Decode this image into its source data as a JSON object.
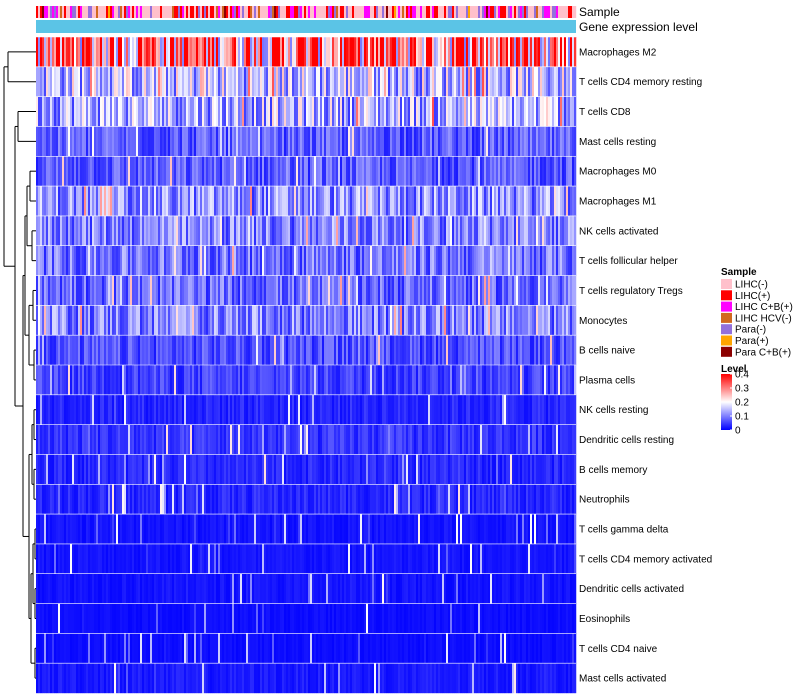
{
  "chart_data": {
    "type": "heatmap",
    "annotation_labels": {
      "sample": "Sample",
      "expression": "Gene expression level"
    },
    "expression_bar_color": "#5bc4e6",
    "rows": [
      "Macrophages M2",
      "T cells CD4 memory resting",
      "T cells CD8",
      "Mast cells resting",
      "Macrophages M0",
      "Macrophages M1",
      "NK cells activated",
      "T cells follicular helper",
      "T cells regulatory  Tregs",
      "Monocytes",
      "B cells naive",
      "Plasma cells",
      "NK cells resting",
      "Dendritic cells resting",
      "B cells memory",
      "Neutrophils",
      "T cells gamma delta",
      "T cells CD4 memory activated",
      "Dendritic cells activated",
      "Eosinophils",
      "T cells CD4 naive",
      "Mast cells activated"
    ],
    "row_mean_level": [
      0.3,
      0.15,
      0.14,
      0.07,
      0.07,
      0.11,
      0.1,
      0.09,
      0.08,
      0.1,
      0.06,
      0.05,
      0.03,
      0.04,
      0.03,
      0.03,
      0.015,
      0.015,
      0.015,
      0.01,
      0.01,
      0.02
    ],
    "level_range": [
      0,
      0.4
    ],
    "sample_legend": {
      "title": "Sample",
      "items": [
        {
          "label": "LIHC(-)",
          "color": "#ffc0cb"
        },
        {
          "label": "LIHC(+)",
          "color": "#ff0000"
        },
        {
          "label": "LIHC C+B(+)",
          "color": "#ff00ff"
        },
        {
          "label": "LIHC HCV(-)",
          "color": "#d2691e"
        },
        {
          "label": "Para(-)",
          "color": "#9370db"
        },
        {
          "label": "Para(+)",
          "color": "#ffa500"
        },
        {
          "label": "Para C+B(+)",
          "color": "#8b0000"
        }
      ]
    },
    "level_legend": {
      "title": "Level",
      "ticks": [
        "0.4",
        "0.3",
        "0.2",
        "0.1",
        "0"
      ],
      "tick_values": [
        0.4,
        0.3,
        0.2,
        0.1,
        0
      ],
      "colors": [
        "#0000ff",
        "#ffffff",
        "#ff0000"
      ]
    }
  }
}
